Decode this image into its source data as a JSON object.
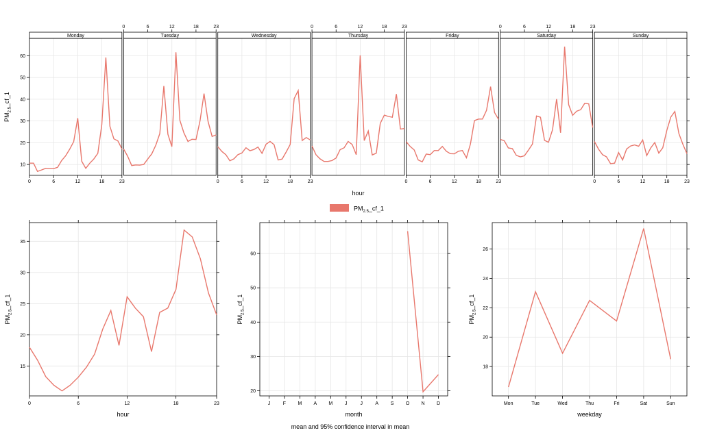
{
  "series_name": "PM",
  "series_sub": "2.5",
  "series_suffix": "_cf_1",
  "color": "#E8776C",
  "caption": "mean and 95% confidence interval in mean",
  "chart_data": [
    {
      "type": "line",
      "id": "dayhour",
      "xlabel": "hour",
      "ylabel": "PM2.5_cf_1",
      "x_ticks": [
        0,
        6,
        12,
        18,
        23
      ],
      "y_ticks": [
        10,
        20,
        30,
        40,
        50,
        60
      ],
      "xlim": [
        0,
        23
      ],
      "ylim": [
        5,
        68
      ],
      "panels": [
        {
          "name": "Monday",
          "values": [
            10.6,
            10.6,
            6.8,
            7.5,
            8.2,
            8.1,
            8.1,
            8.7,
            11.8,
            14.0,
            17.0,
            20.5,
            31.3,
            11.5,
            8.2,
            10.6,
            12.5,
            15.1,
            28.3,
            59.2,
            27.6,
            21.8,
            20.8,
            17.1
          ]
        },
        {
          "name": "Tuesday",
          "values": [
            17.1,
            13.8,
            9.5,
            9.8,
            9.7,
            10.0,
            12.5,
            14.9,
            18.9,
            24.2,
            46.1,
            23.9,
            18.2,
            61.6,
            30.3,
            24.5,
            20.6,
            21.6,
            21.5,
            30.1,
            42.6,
            29.8,
            22.9,
            23.6
          ]
        },
        {
          "name": "Wednesday",
          "values": [
            18.2,
            16.0,
            14.5,
            11.7,
            12.6,
            14.5,
            15.3,
            17.7,
            16.3,
            16.9,
            18.0,
            15.1,
            19.3,
            20.6,
            19.1,
            12.1,
            12.5,
            15.7,
            19.2,
            40.3,
            44.0,
            21.0,
            22.4,
            21.3
          ]
        },
        {
          "name": "Thursday",
          "values": [
            18.5,
            14.5,
            12.6,
            11.4,
            11.4,
            11.8,
            13.0,
            16.8,
            17.7,
            20.6,
            19.2,
            14.5,
            60.2,
            21.0,
            25.4,
            14.4,
            15.2,
            28.9,
            32.7,
            32.1,
            31.7,
            42.4,
            26.3,
            26.5
          ]
        },
        {
          "name": "Friday",
          "values": [
            20.5,
            18.3,
            16.7,
            12.1,
            11.2,
            14.8,
            14.5,
            16.4,
            16.4,
            18.3,
            16.1,
            15.0,
            14.9,
            16.1,
            16.4,
            13.1,
            19.4,
            30.2,
            30.9,
            30.9,
            34.9,
            45.8,
            33.9,
            30.7
          ]
        },
        {
          "name": "Saturday",
          "values": [
            21.5,
            20.9,
            17.6,
            17.3,
            14.2,
            13.5,
            14.0,
            16.6,
            19.4,
            32.3,
            31.7,
            21.1,
            20.2,
            26.0,
            40.1,
            24.6,
            64.2,
            37.5,
            32.6,
            34.5,
            35.2,
            38.1,
            37.9,
            27.0
          ]
        },
        {
          "name": "Sunday",
          "values": [
            20.6,
            17.1,
            14.5,
            13.5,
            10.4,
            10.6,
            15.5,
            12.1,
            17.1,
            18.5,
            19.0,
            18.4,
            21.3,
            14.1,
            17.6,
            20.1,
            15.2,
            17.7,
            25.7,
            31.8,
            34.4,
            24.2,
            19.3,
            15.0
          ]
        }
      ]
    },
    {
      "type": "line",
      "id": "hour",
      "xlabel": "hour",
      "ylabel": "PM2.5_cf_1",
      "x": [
        0,
        1,
        2,
        3,
        4,
        5,
        6,
        7,
        8,
        9,
        10,
        11,
        12,
        13,
        14,
        15,
        16,
        17,
        18,
        19,
        20,
        21,
        22,
        23
      ],
      "values": [
        18.0,
        15.9,
        13.3,
        11.9,
        11.0,
        11.9,
        13.2,
        14.8,
        16.9,
        20.9,
        23.9,
        18.3,
        26.1,
        24.3,
        22.9,
        17.3,
        23.6,
        24.3,
        27.3,
        36.8,
        35.7,
        32.2,
        26.7,
        23.2
      ],
      "x_ticks": [
        0,
        6,
        12,
        18,
        23
      ],
      "y_ticks": [
        15,
        20,
        25,
        30,
        35
      ],
      "xlim": [
        0,
        23
      ],
      "ylim": [
        10.2,
        38.0
      ]
    },
    {
      "type": "line",
      "id": "month",
      "xlabel": "month",
      "ylabel": "PM2.5_cf_1",
      "categories": [
        "J",
        "F",
        "M",
        "A",
        "M",
        "J",
        "J",
        "A",
        "S",
        "O",
        "N",
        "D"
      ],
      "values": [
        null,
        null,
        null,
        null,
        null,
        null,
        null,
        null,
        null,
        66.5,
        19.7,
        24.7
      ],
      "y_ticks": [
        20,
        30,
        40,
        50,
        60
      ],
      "ylim": [
        18.5,
        69.0
      ]
    },
    {
      "type": "line",
      "id": "weekday",
      "xlabel": "weekday",
      "ylabel": "PM2.5_cf_1",
      "categories": [
        "Mon",
        "Tue",
        "Wed",
        "Thu",
        "Fri",
        "Sat",
        "Sun"
      ],
      "values": [
        16.6,
        23.1,
        18.9,
        22.5,
        21.1,
        27.4,
        18.5
      ],
      "y_ticks": [
        18,
        20,
        22,
        24,
        26
      ],
      "ylim": [
        16.0,
        27.8
      ]
    }
  ]
}
